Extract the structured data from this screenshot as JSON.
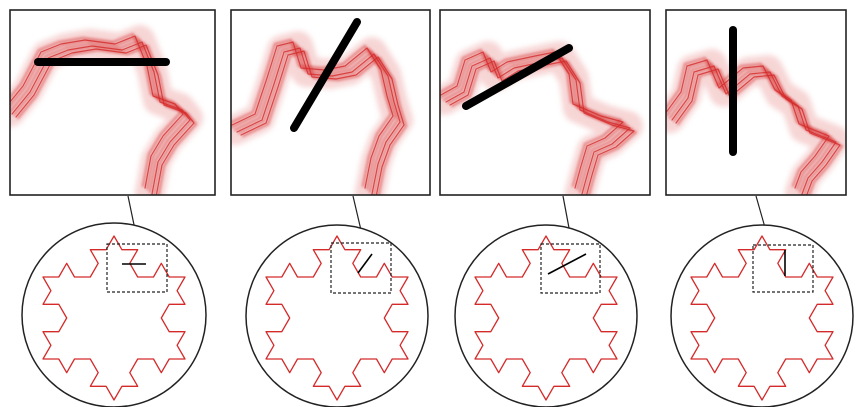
{
  "colors": {
    "curve": "#d42a2a",
    "curve_glow": "#e88888",
    "needle": "#000000",
    "frame": "#222222",
    "background": "#ffffff"
  },
  "figure": {
    "panel_count": 4,
    "panels": [
      {
        "name": "panel-1",
        "needle_orientation_deg": 0
      },
      {
        "name": "panel-2",
        "needle_orientation_deg": 60
      },
      {
        "name": "panel-3",
        "needle_orientation_deg": 30
      },
      {
        "name": "panel-4",
        "needle_orientation_deg": 90
      }
    ]
  }
}
